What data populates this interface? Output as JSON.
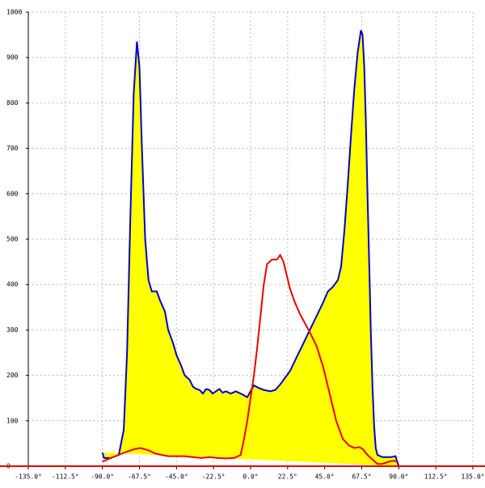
{
  "chart_data": {
    "type": "area",
    "xlim": [
      -135,
      135
    ],
    "xticks": [
      {
        "value": -135,
        "label": "-135.0°"
      },
      {
        "value": -112.5,
        "label": "-112.5°"
      },
      {
        "value": -90,
        "label": "-90.0°"
      },
      {
        "value": -67.5,
        "label": "-67.5°"
      },
      {
        "value": -45,
        "label": "-45.0°"
      },
      {
        "value": -22.5,
        "label": "-22.5°"
      },
      {
        "value": 0,
        "label": "0.0°"
      },
      {
        "value": 22.5,
        "label": "22.5°"
      },
      {
        "value": 45,
        "label": "45.0°"
      },
      {
        "value": 67.5,
        "label": "67.5°"
      },
      {
        "value": 90,
        "label": "90.0°"
      },
      {
        "value": 112.5,
        "label": "112.5°"
      },
      {
        "value": 135,
        "label": "135.0°"
      }
    ],
    "ylim": [
      0,
      1000
    ],
    "yticks": [
      0,
      100,
      200,
      300,
      400,
      500,
      600,
      700,
      800,
      900,
      1000
    ],
    "grid": true,
    "series": [
      {
        "color": "#0000cc",
        "fill": "#ffff00",
        "x": [
          -90,
          -89,
          -85,
          -80,
          -77,
          -75,
          -73,
          -71,
          -69,
          -67.5,
          -66,
          -64,
          -62,
          -60,
          -57,
          -55,
          -52,
          -50,
          -47,
          -45,
          -42,
          -40,
          -37,
          -35,
          -33,
          -31,
          -29,
          -27,
          -25,
          -23,
          -21,
          -19,
          -17,
          -15,
          -12,
          -9,
          -5,
          -2,
          0,
          2,
          5,
          8,
          12,
          15,
          18,
          21,
          24,
          28,
          32,
          36,
          40,
          44,
          47,
          50,
          53,
          55,
          57,
          59,
          61,
          63,
          65,
          67,
          68,
          69,
          70,
          71,
          72,
          73,
          74,
          75,
          76,
          77,
          80,
          85,
          88,
          89,
          90
        ],
        "values": [
          30,
          18,
          18,
          25,
          80,
          250,
          550,
          820,
          935,
          880,
          700,
          500,
          410,
          385,
          385,
          365,
          340,
          300,
          270,
          245,
          220,
          200,
          190,
          175,
          170,
          168,
          160,
          170,
          168,
          160,
          165,
          170,
          162,
          165,
          160,
          165,
          158,
          152,
          165,
          178,
          172,
          168,
          165,
          168,
          180,
          195,
          210,
          240,
          270,
          300,
          330,
          360,
          385,
          395,
          410,
          440,
          520,
          620,
          730,
          830,
          910,
          960,
          950,
          880,
          760,
          600,
          450,
          300,
          180,
          90,
          40,
          25,
          20,
          20,
          22,
          10,
          0
        ]
      },
      {
        "color": "#ee0000",
        "x": [
          -90,
          -85,
          -80,
          -75,
          -70,
          -67,
          -62,
          -58,
          -54,
          -50,
          -45,
          -40,
          -35,
          -30,
          -25,
          -20,
          -15,
          -10,
          -6,
          -4,
          -2,
          0,
          2,
          4,
          6,
          8,
          10,
          13,
          16,
          18,
          20,
          22,
          24,
          27,
          30,
          33,
          36,
          40,
          44,
          48,
          52,
          56,
          60,
          63,
          66,
          68,
          71,
          74,
          77,
          80,
          84,
          87,
          89
        ],
        "values": [
          10,
          18,
          25,
          32,
          38,
          40,
          35,
          28,
          25,
          22,
          22,
          22,
          20,
          18,
          20,
          18,
          17,
          18,
          25,
          60,
          100,
          150,
          200,
          260,
          330,
          400,
          445,
          455,
          455,
          465,
          450,
          420,
          390,
          360,
          335,
          315,
          295,
          265,
          220,
          160,
          100,
          60,
          45,
          40,
          42,
          38,
          25,
          15,
          5,
          5,
          10,
          12,
          10
        ]
      }
    ]
  }
}
